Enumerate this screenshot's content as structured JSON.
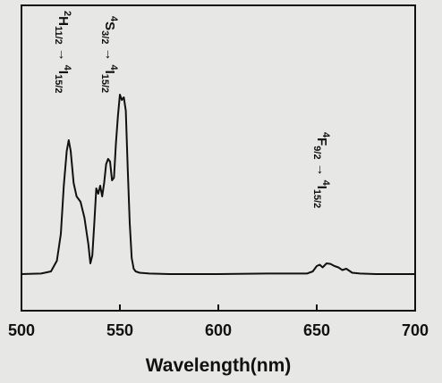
{
  "chart_data": {
    "type": "line",
    "xlabel": "Wavelength(nm)",
    "ylabel": "",
    "xlim": [
      500,
      700
    ],
    "ylim": [
      0,
      1
    ],
    "x_ticks": [
      "500",
      "550",
      "600",
      "650",
      "700"
    ],
    "grid": false,
    "series": [
      {
        "x": [
          500,
          510,
          515,
          518,
          520,
          521.5,
          523,
          524,
          525,
          526.5,
          528,
          530,
          532,
          534,
          535,
          536,
          537,
          538,
          539,
          540,
          541,
          542,
          543,
          544,
          545,
          546,
          547,
          548,
          549,
          550,
          551,
          552,
          553,
          554,
          555,
          556,
          557,
          558,
          560,
          565,
          575,
          600,
          625,
          645,
          648,
          650,
          651.5,
          653,
          655,
          657,
          659,
          661,
          663,
          665,
          668,
          672,
          680,
          700
        ],
        "y": [
          0.01,
          0.012,
          0.02,
          0.06,
          0.16,
          0.34,
          0.47,
          0.51,
          0.47,
          0.35,
          0.3,
          0.28,
          0.22,
          0.12,
          0.05,
          0.08,
          0.2,
          0.33,
          0.31,
          0.34,
          0.3,
          0.35,
          0.42,
          0.44,
          0.43,
          0.36,
          0.37,
          0.5,
          0.6,
          0.68,
          0.66,
          0.67,
          0.62,
          0.4,
          0.2,
          0.07,
          0.03,
          0.02,
          0.015,
          0.012,
          0.01,
          0.01,
          0.012,
          0.012,
          0.02,
          0.04,
          0.045,
          0.035,
          0.05,
          0.048,
          0.04,
          0.035,
          0.025,
          0.03,
          0.015,
          0.012,
          0.01,
          0.01
        ]
      }
    ],
    "annotations": [
      {
        "sup1": "2",
        "main": "H",
        "sub1": "11/2",
        "arrow": "→",
        "sup2": "4",
        "main2": "I",
        "sub2": "15/2"
      },
      {
        "sup1": "4",
        "main": "S",
        "sub1": "3/2",
        "arrow": "→",
        "sup2": "4",
        "main2": "I",
        "sub2": "15/2"
      },
      {
        "sup1": "4",
        "main": "F",
        "sub1": "9/2",
        "arrow": "→",
        "sup2": "4",
        "main2": "I",
        "sub2": "15/2"
      }
    ]
  }
}
